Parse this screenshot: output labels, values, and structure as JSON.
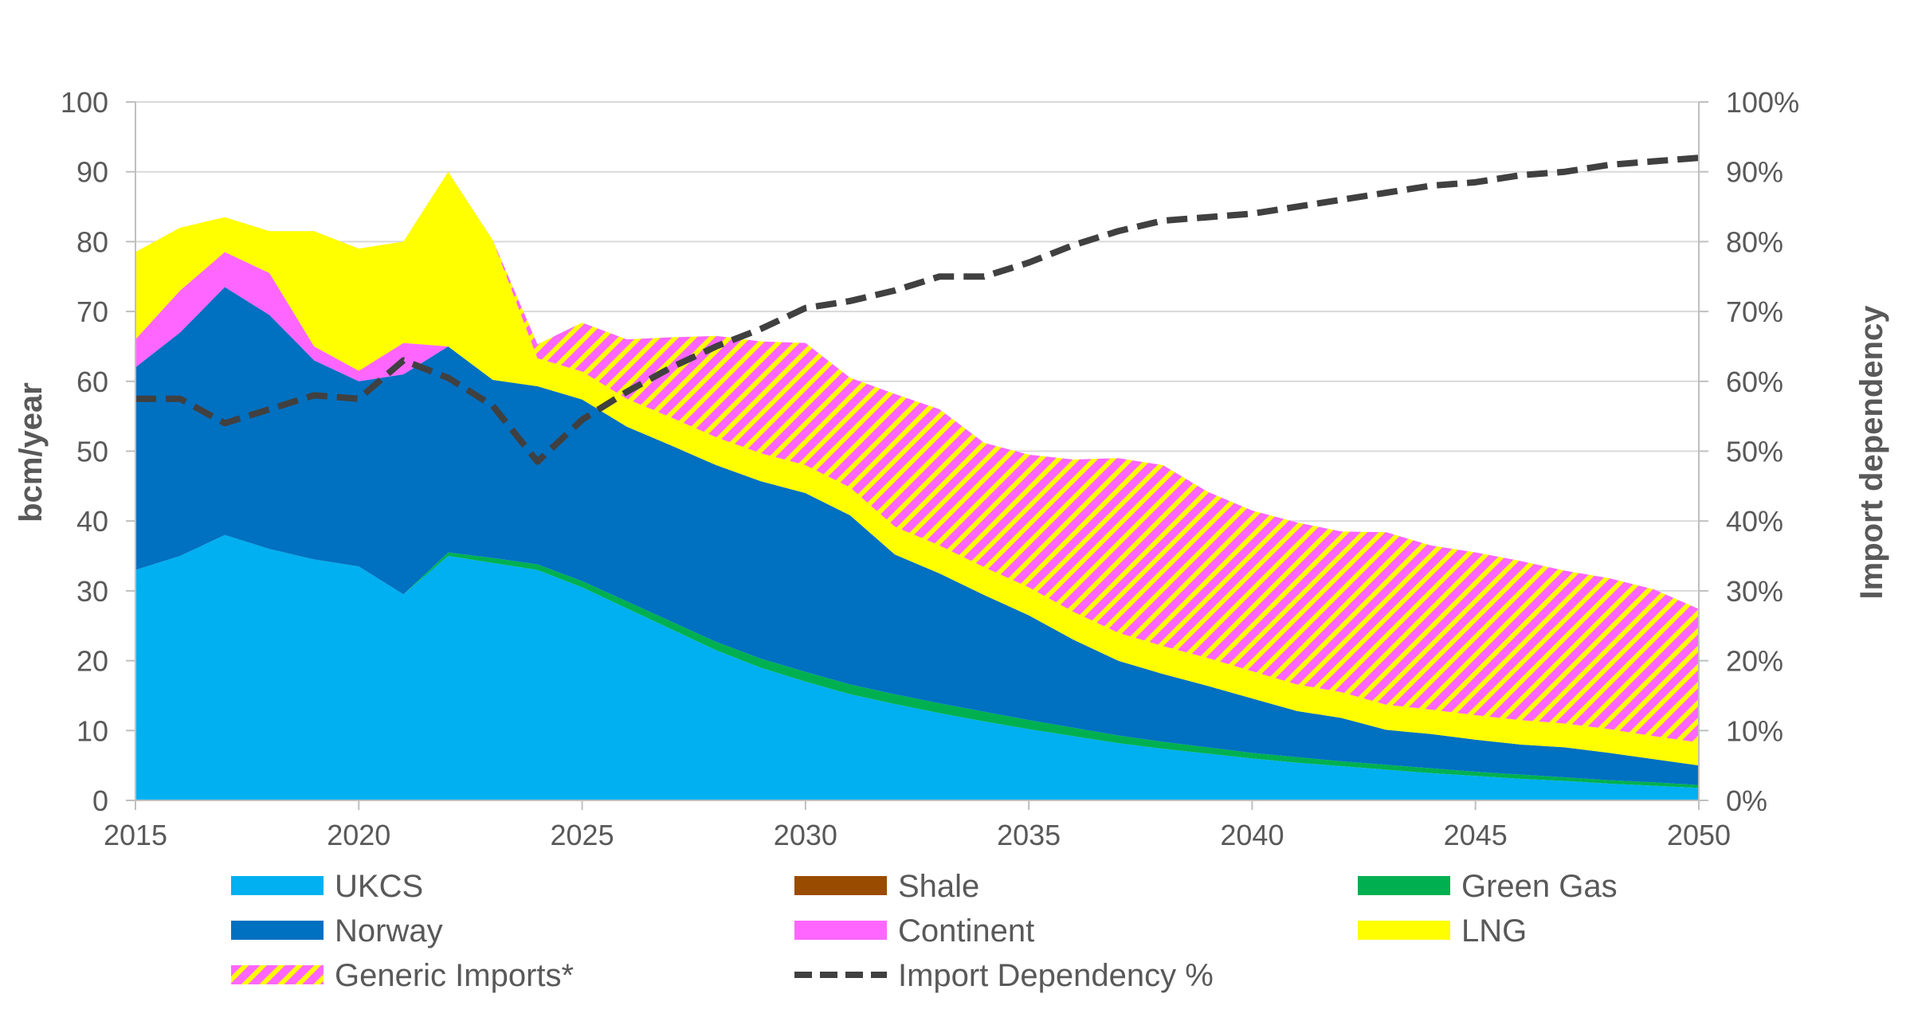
{
  "chart_data": {
    "type": "area",
    "title": "",
    "xlabel": "",
    "ylabel": "bcm/year",
    "y2label": "Import dependency",
    "xlim": [
      2015,
      2050
    ],
    "ylim": [
      0,
      100
    ],
    "y2lim": [
      0,
      100
    ],
    "x_ticks": [
      "2015",
      "2020",
      "2025",
      "2030",
      "2035",
      "2040",
      "2045",
      "2050"
    ],
    "y_ticks": [
      "0",
      "10",
      "20",
      "30",
      "40",
      "50",
      "60",
      "70",
      "80",
      "90",
      "100"
    ],
    "y2_ticks": [
      "0%",
      "10%",
      "20%",
      "30%",
      "40%",
      "50%",
      "60%",
      "70%",
      "80%",
      "90%",
      "100%"
    ],
    "grid": true,
    "legend_position": "bottom",
    "x": [
      2015,
      2016,
      2017,
      2018,
      2019,
      2020,
      2021,
      2022,
      2023,
      2024,
      2025,
      2026,
      2027,
      2028,
      2029,
      2030,
      2031,
      2032,
      2033,
      2034,
      2035,
      2036,
      2037,
      2038,
      2039,
      2040,
      2041,
      2042,
      2043,
      2044,
      2045,
      2046,
      2047,
      2048,
      2049,
      2050
    ],
    "series": [
      {
        "name": "UKCS",
        "kind": "stacked-area",
        "color": "#00b0f0",
        "values": [
          33,
          35,
          38,
          36,
          34.5,
          33.5,
          29.5,
          35,
          34,
          33,
          30.5,
          27.5,
          24.5,
          21.5,
          19,
          17,
          15.2,
          13.8,
          12.5,
          11.3,
          10.2,
          9.2,
          8.2,
          7.4,
          6.7,
          6,
          5.4,
          4.9,
          4.4,
          3.9,
          3.5,
          3.1,
          2.8,
          2.4,
          2.1,
          1.8
        ]
      },
      {
        "name": "Shale",
        "kind": "stacked-area",
        "color": "#994c00",
        "values": [
          0,
          0,
          0,
          0,
          0,
          0,
          0,
          0,
          0,
          0,
          0,
          0,
          0,
          0,
          0,
          0,
          0,
          0,
          0,
          0,
          0,
          0,
          0,
          0,
          0,
          0,
          0,
          0,
          0,
          0,
          0,
          0,
          0,
          0,
          0,
          0
        ]
      },
      {
        "name": "Green Gas",
        "kind": "stacked-area",
        "color": "#00b050",
        "values": [
          0,
          0,
          0,
          0,
          0,
          0,
          0,
          0.5,
          0.7,
          0.8,
          0.9,
          1,
          1.1,
          1.2,
          1.3,
          1.4,
          1.4,
          1.4,
          1.4,
          1.4,
          1.3,
          1.2,
          1.1,
          1,
          0.9,
          0.8,
          0.8,
          0.7,
          0.7,
          0.7,
          0.6,
          0.6,
          0.5,
          0.5,
          0.5,
          0.4
        ]
      },
      {
        "name": "Norway",
        "kind": "stacked-area",
        "color": "#0070c0",
        "values": [
          29,
          32,
          35.5,
          33.5,
          28.5,
          26.5,
          31.5,
          29.5,
          25.5,
          25.5,
          26,
          25,
          25.2,
          25.3,
          25.4,
          25.6,
          24.2,
          20,
          18.6,
          16.7,
          15,
          12.6,
          10.7,
          9.7,
          8.8,
          7.8,
          6.6,
          6.2,
          5,
          4.9,
          4.6,
          4.3,
          4.3,
          3.9,
          3.3,
          2.8
        ]
      },
      {
        "name": "Continent",
        "kind": "stacked-area",
        "color": "#ff66ff",
        "values": [
          4,
          6,
          5,
          6,
          2,
          1.5,
          4.5,
          0,
          0,
          0,
          0,
          0,
          0,
          0,
          0,
          0,
          0,
          0,
          0,
          0,
          0,
          0,
          0,
          0,
          0,
          0,
          0,
          0,
          0,
          0,
          0,
          0,
          0,
          0,
          0,
          0
        ]
      },
      {
        "name": "LNG",
        "kind": "stacked-area",
        "color": "#ffff00",
        "values": [
          12.5,
          9,
          5,
          6,
          16.5,
          17.5,
          14.5,
          25,
          20,
          4,
          4,
          4,
          4,
          4,
          4,
          4,
          4,
          4,
          4,
          4,
          4,
          4,
          4,
          4,
          4,
          3.9,
          3.8,
          3.7,
          3.6,
          3.5,
          3.5,
          3.5,
          3.4,
          3.4,
          3.3,
          3.3
        ]
      },
      {
        "name": "Generic Imports*",
        "kind": "stacked-area",
        "color": "#ff66ff",
        "color2": "#ffff00",
        "pattern": "hatched",
        "values": [
          0,
          0,
          0,
          0,
          0,
          0,
          0,
          0,
          0,
          2,
          7,
          8.5,
          11.5,
          14.5,
          16,
          17.5,
          15.7,
          19,
          19.5,
          17.8,
          19,
          21.8,
          25,
          25.9,
          23.8,
          23,
          23.2,
          23,
          24.7,
          23.5,
          23.3,
          22.8,
          21.9,
          21.6,
          21,
          19.1
        ]
      },
      {
        "name": "Import Dependency %",
        "kind": "dashed-line",
        "axis": "right",
        "color": "#404040",
        "values": [
          57.5,
          57.5,
          54,
          56,
          58,
          57.5,
          63,
          60.5,
          56.5,
          48.5,
          54.5,
          58.5,
          62,
          65,
          67.5,
          70.5,
          71.5,
          73,
          75,
          75,
          77,
          79.5,
          81.5,
          83,
          83.5,
          84,
          85,
          86,
          87,
          88,
          88.5,
          89.5,
          90,
          91,
          91.5,
          92
        ]
      }
    ],
    "legend": [
      {
        "label": "UKCS",
        "swatch": "solid",
        "color": "#00b0f0"
      },
      {
        "label": "Shale",
        "swatch": "solid",
        "color": "#994c00"
      },
      {
        "label": "Green Gas",
        "swatch": "solid",
        "color": "#00b050"
      },
      {
        "label": "Norway",
        "swatch": "solid",
        "color": "#0070c0"
      },
      {
        "label": "Continent",
        "swatch": "solid",
        "color": "#ff66ff"
      },
      {
        "label": "LNG",
        "swatch": "solid",
        "color": "#ffff00"
      },
      {
        "label": "Generic Imports*",
        "swatch": "hatched",
        "color": "#ff66ff",
        "color2": "#ffff00"
      },
      {
        "label": "Import Dependency %",
        "swatch": "dashed",
        "color": "#404040"
      }
    ]
  }
}
